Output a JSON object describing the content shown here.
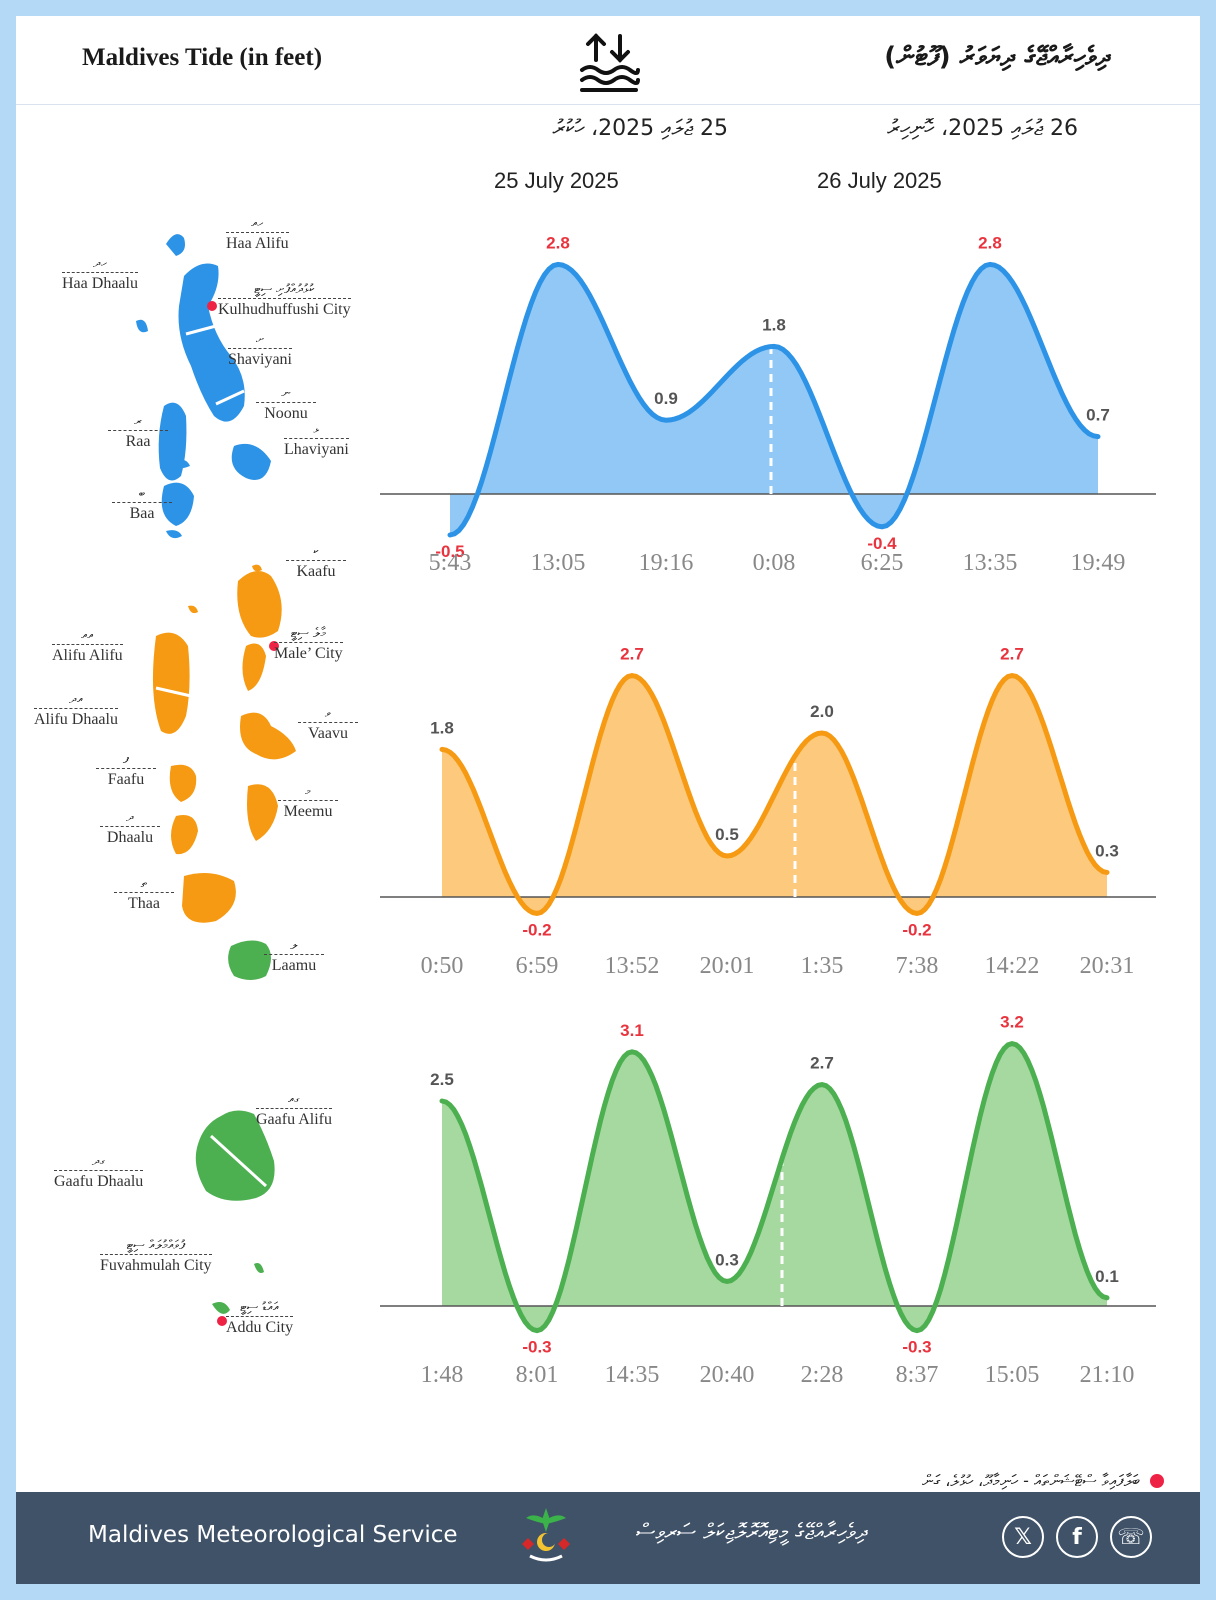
{
  "header": {
    "title_en": "Maldives Tide (in feet)",
    "title_dv": "ދިވެހިރާއްޖޭގެ ދިޔަވަރު (ފޫޓުން)",
    "tide_icon": "tide-icon"
  },
  "dates": [
    {
      "dv": "25 ޖުލައި 2025، ހުކުރު",
      "en": "25 July 2025"
    },
    {
      "dv": "26 ޖުލައި 2025، ހޮނިހިރު",
      "en": "26 July 2025"
    }
  ],
  "atolls": {
    "north": [
      {
        "dv": "ހއ",
        "en": "Haa Alifu"
      },
      {
        "dv": "ހދ",
        "en": "Haa Dhaalu"
      },
      {
        "dv": "ކުޅުދުއްފުށި ސިޓީ",
        "en": "Kulhudhuffushi City"
      },
      {
        "dv": "ށ",
        "en": "Shaviyani"
      },
      {
        "dv": "ނ",
        "en": "Noonu"
      },
      {
        "dv": "ރ",
        "en": "Raa"
      },
      {
        "dv": "ޅ",
        "en": "Lhaviyani"
      },
      {
        "dv": "ބ",
        "en": "Baa"
      }
    ],
    "central": [
      {
        "dv": "ކ",
        "en": "Kaafu"
      },
      {
        "dv": "މާލެ ސިޓީ",
        "en": "Male’ City"
      },
      {
        "dv": "އއ",
        "en": "Alifu Alifu"
      },
      {
        "dv": "އދ",
        "en": "Alifu Dhaalu"
      },
      {
        "dv": "ވ",
        "en": "Vaavu"
      },
      {
        "dv": "ފ",
        "en": "Faafu"
      },
      {
        "dv": "މ",
        "en": "Meemu"
      },
      {
        "dv": "ދ",
        "en": "Dhaalu"
      },
      {
        "dv": "ތ",
        "en": "Thaa"
      },
      {
        "dv": "ލ",
        "en": "Laamu"
      }
    ],
    "south": [
      {
        "dv": "ގއ",
        "en": "Gaafu Alifu"
      },
      {
        "dv": "ގދ",
        "en": "Gaafu Dhaalu"
      },
      {
        "dv": "ފުވައްމުލައް ސިޓީ",
        "en": "Fuvahmulah City"
      },
      {
        "dv": "އައްޑު ސިޓީ",
        "en": "Addu City"
      }
    ]
  },
  "legend": {
    "dv": "ބަލާފައިވާ ސްޓޭޝަންތައް - ހަނިމާދޫ، ހުޅުލެ، ގަން"
  },
  "footer": {
    "org_en": "Maldives Meteorological Service",
    "org_dv": "ދިވެހިރާއްޖޭގެ މީޓިއޮރޮލޮޖިކަލް ސަރވިސް",
    "social": [
      {
        "icon": "x-icon",
        "glyph": "𝕏"
      },
      {
        "icon": "facebook-icon",
        "glyph": "f"
      },
      {
        "icon": "whatsapp-icon",
        "glyph": "☏"
      }
    ]
  },
  "chart_data": [
    {
      "type": "area",
      "region": "north",
      "color": "#2d93e6",
      "fill": "#92c8f5",
      "high_label_color": "#e8343e",
      "low_label_color": "#e8343e",
      "times": [
        "5:43",
        "13:05",
        "19:16",
        "0:08",
        "6:25",
        "13:35",
        "19:49"
      ],
      "values": [
        -0.5,
        2.8,
        0.9,
        1.8,
        -0.4,
        2.8,
        0.7
      ],
      "highlighted": [
        true,
        true,
        false,
        false,
        true,
        true,
        false
      ]
    },
    {
      "type": "area",
      "region": "central",
      "color": "#f59a12",
      "fill": "#fdc97c",
      "high_label_color": "#e8343e",
      "low_label_color": "#e8343e",
      "times": [
        "0:50",
        "6:59",
        "13:52",
        "20:01",
        "1:35",
        "7:38",
        "14:22",
        "20:31"
      ],
      "values": [
        1.8,
        -0.2,
        2.7,
        0.5,
        2.0,
        -0.2,
        2.7,
        0.3
      ],
      "highlighted": [
        false,
        true,
        true,
        false,
        false,
        true,
        true,
        false
      ]
    },
    {
      "type": "area",
      "region": "south",
      "color": "#4caf50",
      "fill": "#a6d9a0",
      "high_label_color": "#e8343e",
      "low_label_color": "#e8343e",
      "times": [
        "1:48",
        "8:01",
        "14:35",
        "20:40",
        "2:28",
        "8:37",
        "15:05",
        "21:10"
      ],
      "values": [
        2.5,
        -0.3,
        3.1,
        0.3,
        2.7,
        -0.3,
        3.2,
        0.1
      ],
      "highlighted": [
        false,
        true,
        true,
        false,
        false,
        true,
        true,
        false
      ]
    }
  ]
}
